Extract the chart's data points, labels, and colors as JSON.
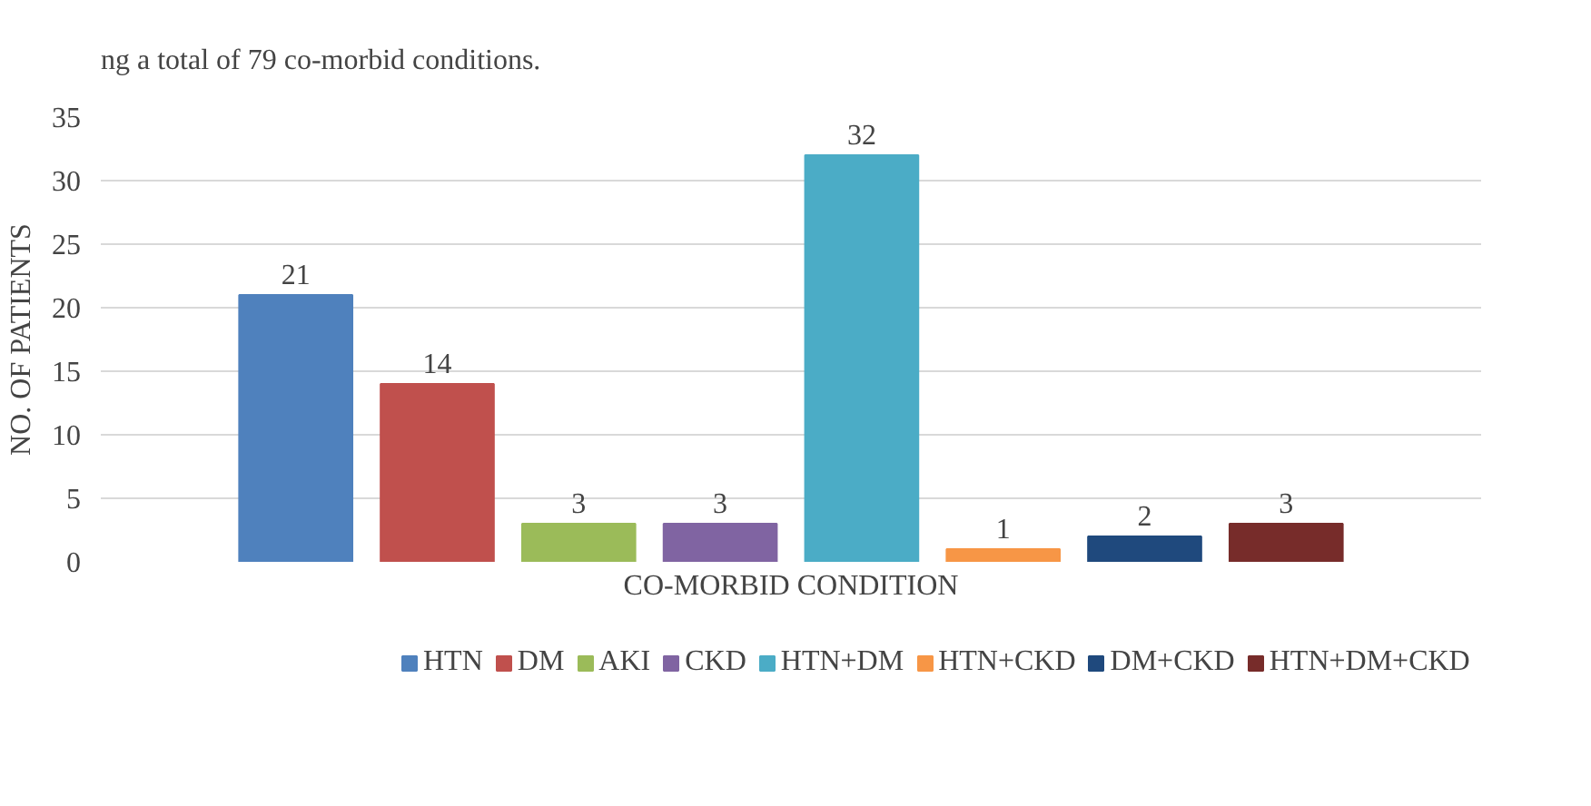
{
  "chart_data": {
    "type": "bar",
    "annotations": [
      "ng a total of 79 co-morbid conditions."
    ],
    "xlabel": "CO-MORBID CONDITION",
    "ylabel": "NO. OF PATIENTS",
    "categories": [
      null
    ],
    "series": [
      {
        "name": "HTN",
        "color": "#4f81bd",
        "values": [
          21
        ]
      },
      {
        "name": "DM",
        "color": "#c0504d",
        "values": [
          14
        ]
      },
      {
        "name": "AKI",
        "color": "#9bbb59",
        "values": [
          3
        ]
      },
      {
        "name": "CKD",
        "color": "#8064a2",
        "values": [
          3
        ]
      },
      {
        "name": "HTN+DM",
        "color": "#4bacc6",
        "values": [
          32
        ]
      },
      {
        "name": "HTN+CKD",
        "color": "#f79646",
        "values": [
          1
        ]
      },
      {
        "name": "DM+CKD",
        "color": "#1f497d",
        "values": [
          2
        ]
      },
      {
        "name": "HTN+DM+CKD",
        "color": "#772c2a",
        "values": [
          3
        ]
      }
    ],
    "ylim": [
      0,
      35
    ],
    "yticks": [
      0,
      5,
      10,
      15,
      20,
      25,
      30,
      35
    ],
    "grid": "y",
    "legend": "bottom",
    "data_labels": true,
    "tick_labels": "y"
  }
}
